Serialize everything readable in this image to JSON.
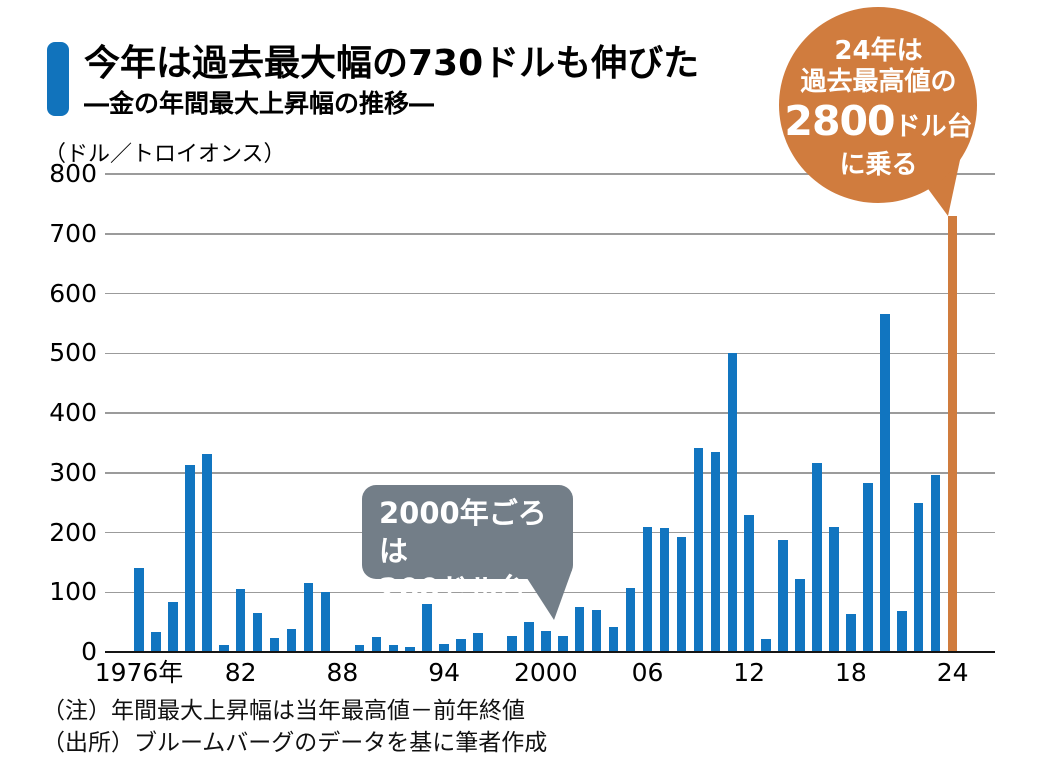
{
  "colors": {
    "bar": "#1175c0",
    "highlight": "#d07c3e",
    "accent": "#1173bc",
    "callout_gray": "#737e88"
  },
  "notes": {
    "note": "（注）年間最大上昇幅は当年最高値－前年終値",
    "source": "（出所）ブルームバーグのデータを基に筆者作成"
  },
  "chart_data": {
    "type": "bar",
    "title": "今年は過去最大幅の730ドルも伸びた",
    "subtitle": "―金の年間最大上昇幅の推移―",
    "ylabel": "（ドル／トロイオンス）",
    "ylim": [
      0,
      800
    ],
    "grid": true,
    "y_ticks": [
      0,
      100,
      200,
      300,
      400,
      500,
      600,
      700,
      800
    ],
    "x_ticks": [
      {
        "year": 1976,
        "label": "1976年"
      },
      {
        "year": 1982,
        "label": "82"
      },
      {
        "year": 1988,
        "label": "88"
      },
      {
        "year": 1994,
        "label": "94"
      },
      {
        "year": 2000,
        "label": "2000"
      },
      {
        "year": 2006,
        "label": "06"
      },
      {
        "year": 2012,
        "label": "12"
      },
      {
        "year": 2018,
        "label": "18"
      },
      {
        "year": 2024,
        "label": "24"
      }
    ],
    "highlight_year": 2024,
    "years": [
      1976,
      1977,
      1978,
      1979,
      1980,
      1981,
      1982,
      1983,
      1984,
      1985,
      1986,
      1987,
      1988,
      1989,
      1990,
      1991,
      1992,
      1993,
      1994,
      1995,
      1996,
      1997,
      1998,
      1999,
      2000,
      2001,
      2002,
      2003,
      2004,
      2005,
      2006,
      2007,
      2008,
      2009,
      2010,
      2011,
      2012,
      2013,
      2014,
      2015,
      2016,
      2017,
      2018,
      2019,
      2020,
      2021,
      2022,
      2023,
      2024
    ],
    "values": [
      140,
      33,
      83,
      313,
      331,
      12,
      105,
      66,
      23,
      39,
      115,
      100,
      0,
      12,
      25,
      11,
      9,
      81,
      13,
      21,
      32,
      0,
      27,
      50,
      35,
      26,
      76,
      71,
      42,
      107,
      210,
      208,
      192,
      341,
      334,
      500,
      229,
      21,
      187,
      123,
      316,
      209,
      63,
      283,
      565,
      68,
      250,
      297,
      730
    ],
    "annotations": {
      "peak": {
        "line1": "24年は",
        "line2": "過去最高値の",
        "big": "2800",
        "big_suffix": "ドル台",
        "line4": "に乗る"
      },
      "dip": {
        "line1": "2000年ごろは",
        "line2": "200ドル台"
      }
    }
  }
}
